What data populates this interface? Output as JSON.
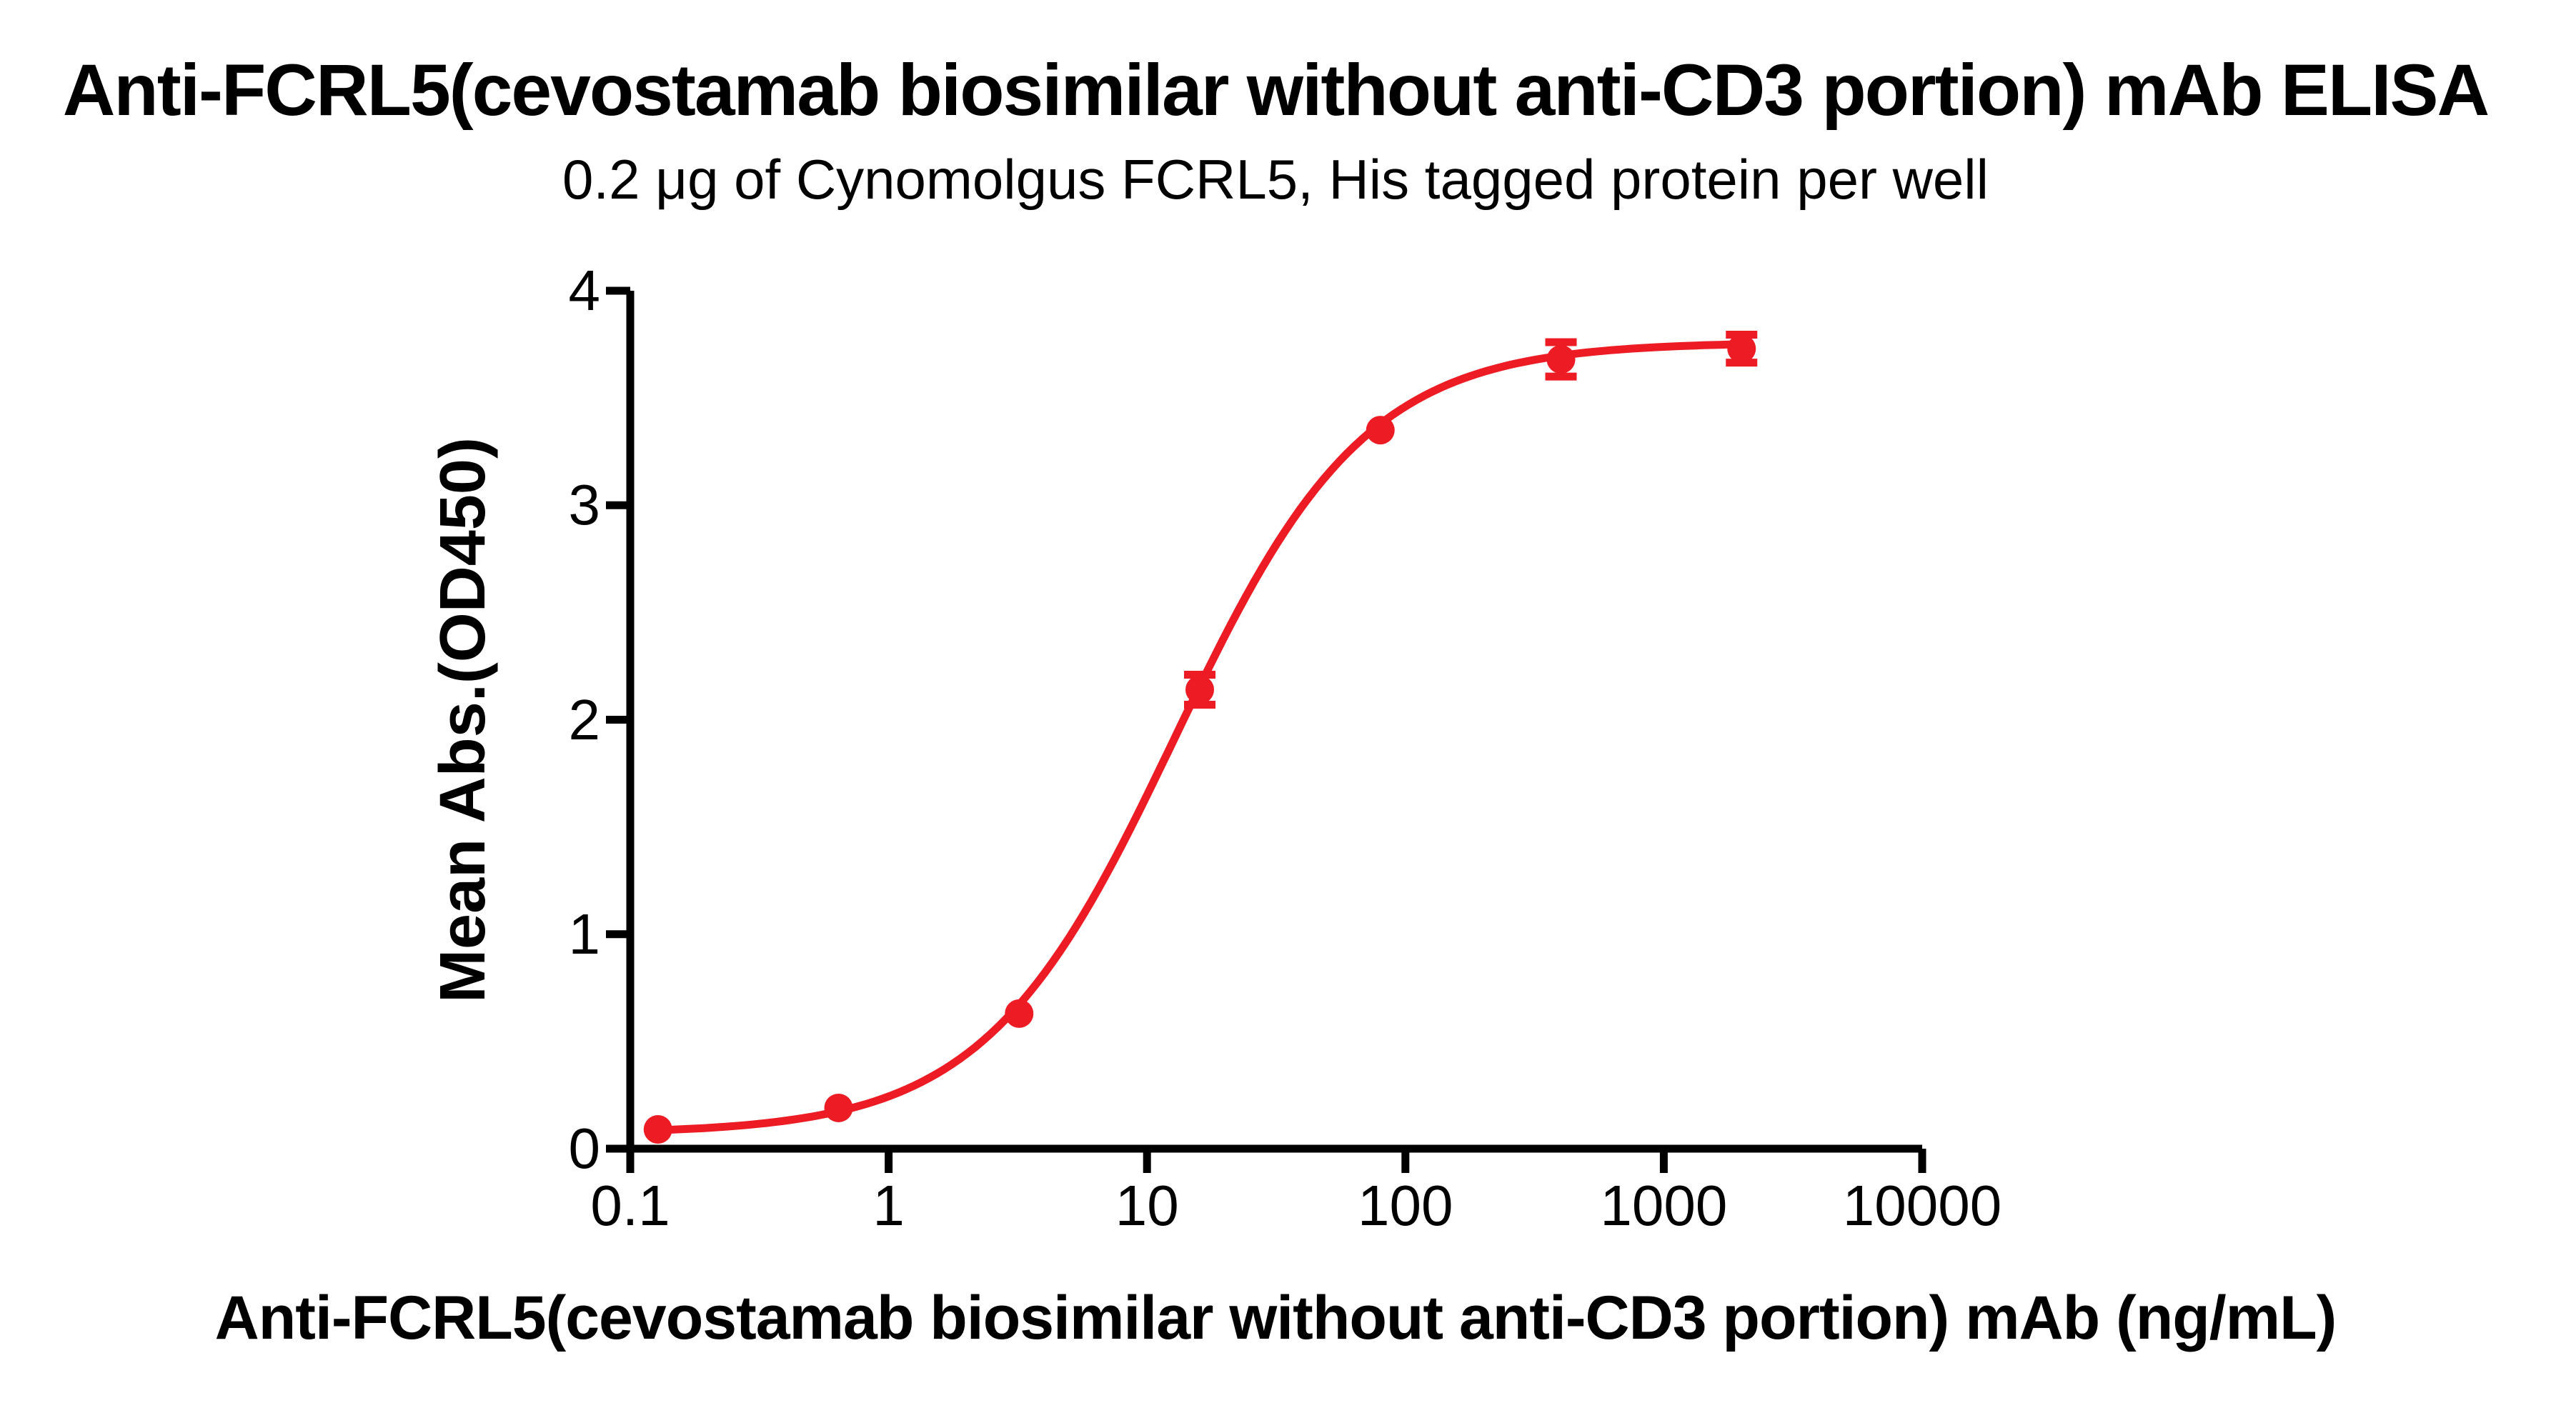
{
  "page": {
    "background": "#ffffff"
  },
  "chart_data": {
    "type": "scatter",
    "title": "Anti-FCRL5(cevostamab biosimilar without anti-CD3 portion) mAb ELISA",
    "subtitle": "0.2 μg of Cynomolgus FCRL5, His tagged protein per well",
    "xlabel": "Anti-FCRL5(cevostamab biosimilar without anti-CD3 portion) mAb (ng/mL)",
    "ylabel": "Mean Abs.(OD450)",
    "x_scale": "log10",
    "xlim": [
      0.1,
      10000
    ],
    "ylim": [
      0,
      4
    ],
    "x_ticks": [
      "0.1",
      "1",
      "10",
      "100",
      "1000",
      "10000"
    ],
    "y_ticks": [
      "0",
      "1",
      "2",
      "3",
      "4"
    ],
    "grid": false,
    "legend": "none",
    "axis_color": "#000000",
    "accent_color": "#ED1C24",
    "series": [
      {
        "name": "Anti-FCRL5(cevostamab biosimilar without anti-CD3 portion) mAb",
        "color": "#ED1C24",
        "marker": "circle",
        "points": [
          {
            "x": 0.128,
            "y": 0.09,
            "err": 0
          },
          {
            "x": 0.64,
            "y": 0.19,
            "err": 0
          },
          {
            "x": 3.2,
            "y": 0.63,
            "err": 0
          },
          {
            "x": 16,
            "y": 2.14,
            "err": 0.07
          },
          {
            "x": 80,
            "y": 3.35,
            "err": 0
          },
          {
            "x": 400,
            "y": 3.68,
            "err": 0.08
          },
          {
            "x": 2000,
            "y": 3.73,
            "err": 0.065
          }
        ],
        "fit_curve_4pl": {
          "bottom": 0.07,
          "top": 3.76,
          "ec50": 12.8,
          "hill": 1.18
        }
      }
    ]
  }
}
